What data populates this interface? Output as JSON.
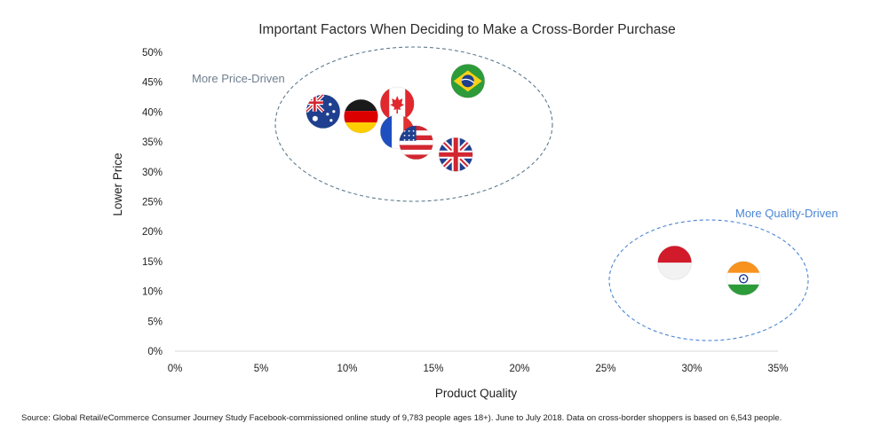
{
  "chart_data": {
    "type": "scatter",
    "title": "Important Factors When Deciding to Make a Cross-Border Purchase",
    "xlabel": "Product Quality",
    "ylabel": "Lower Price",
    "xlim": [
      0,
      35
    ],
    "ylim": [
      0,
      50
    ],
    "x_ticks": [
      "0%",
      "5%",
      "10%",
      "15%",
      "20%",
      "25%",
      "30%",
      "35%"
    ],
    "y_ticks": [
      "0%",
      "5%",
      "10%",
      "15%",
      "20%",
      "25%",
      "30%",
      "35%",
      "40%",
      "45%",
      "50%"
    ],
    "grid": false,
    "points": [
      {
        "flag": "australia-flag",
        "x": 8.6,
        "y": 40.1
      },
      {
        "flag": "germany-flag",
        "x": 10.8,
        "y": 39.3
      },
      {
        "flag": "canada-flag",
        "x": 12.9,
        "y": 41.4
      },
      {
        "flag": "france-flag",
        "x": 12.9,
        "y": 36.7
      },
      {
        "flag": "usa-flag",
        "x": 14.0,
        "y": 34.9
      },
      {
        "flag": "uk-flag",
        "x": 16.3,
        "y": 32.9
      },
      {
        "flag": "brazil-flag",
        "x": 17.0,
        "y": 45.2
      },
      {
        "flag": "indonesia-flag",
        "x": 29.0,
        "y": 14.8
      },
      {
        "flag": "india-flag",
        "x": 33.0,
        "y": 12.2
      }
    ],
    "annotations": [
      {
        "text": "More Price-Driven",
        "color": "#6f7f8f"
      },
      {
        "text": "More Quality-Driven",
        "color": "#4a86d6"
      }
    ]
  },
  "source": "Source: Global Retail/eCommerce Consumer Journey Study Facebook-commissioned online study of 9,783 people  ages 18+).  June to July 2018. Data on cross-border shoppers is based on 6,543 people."
}
